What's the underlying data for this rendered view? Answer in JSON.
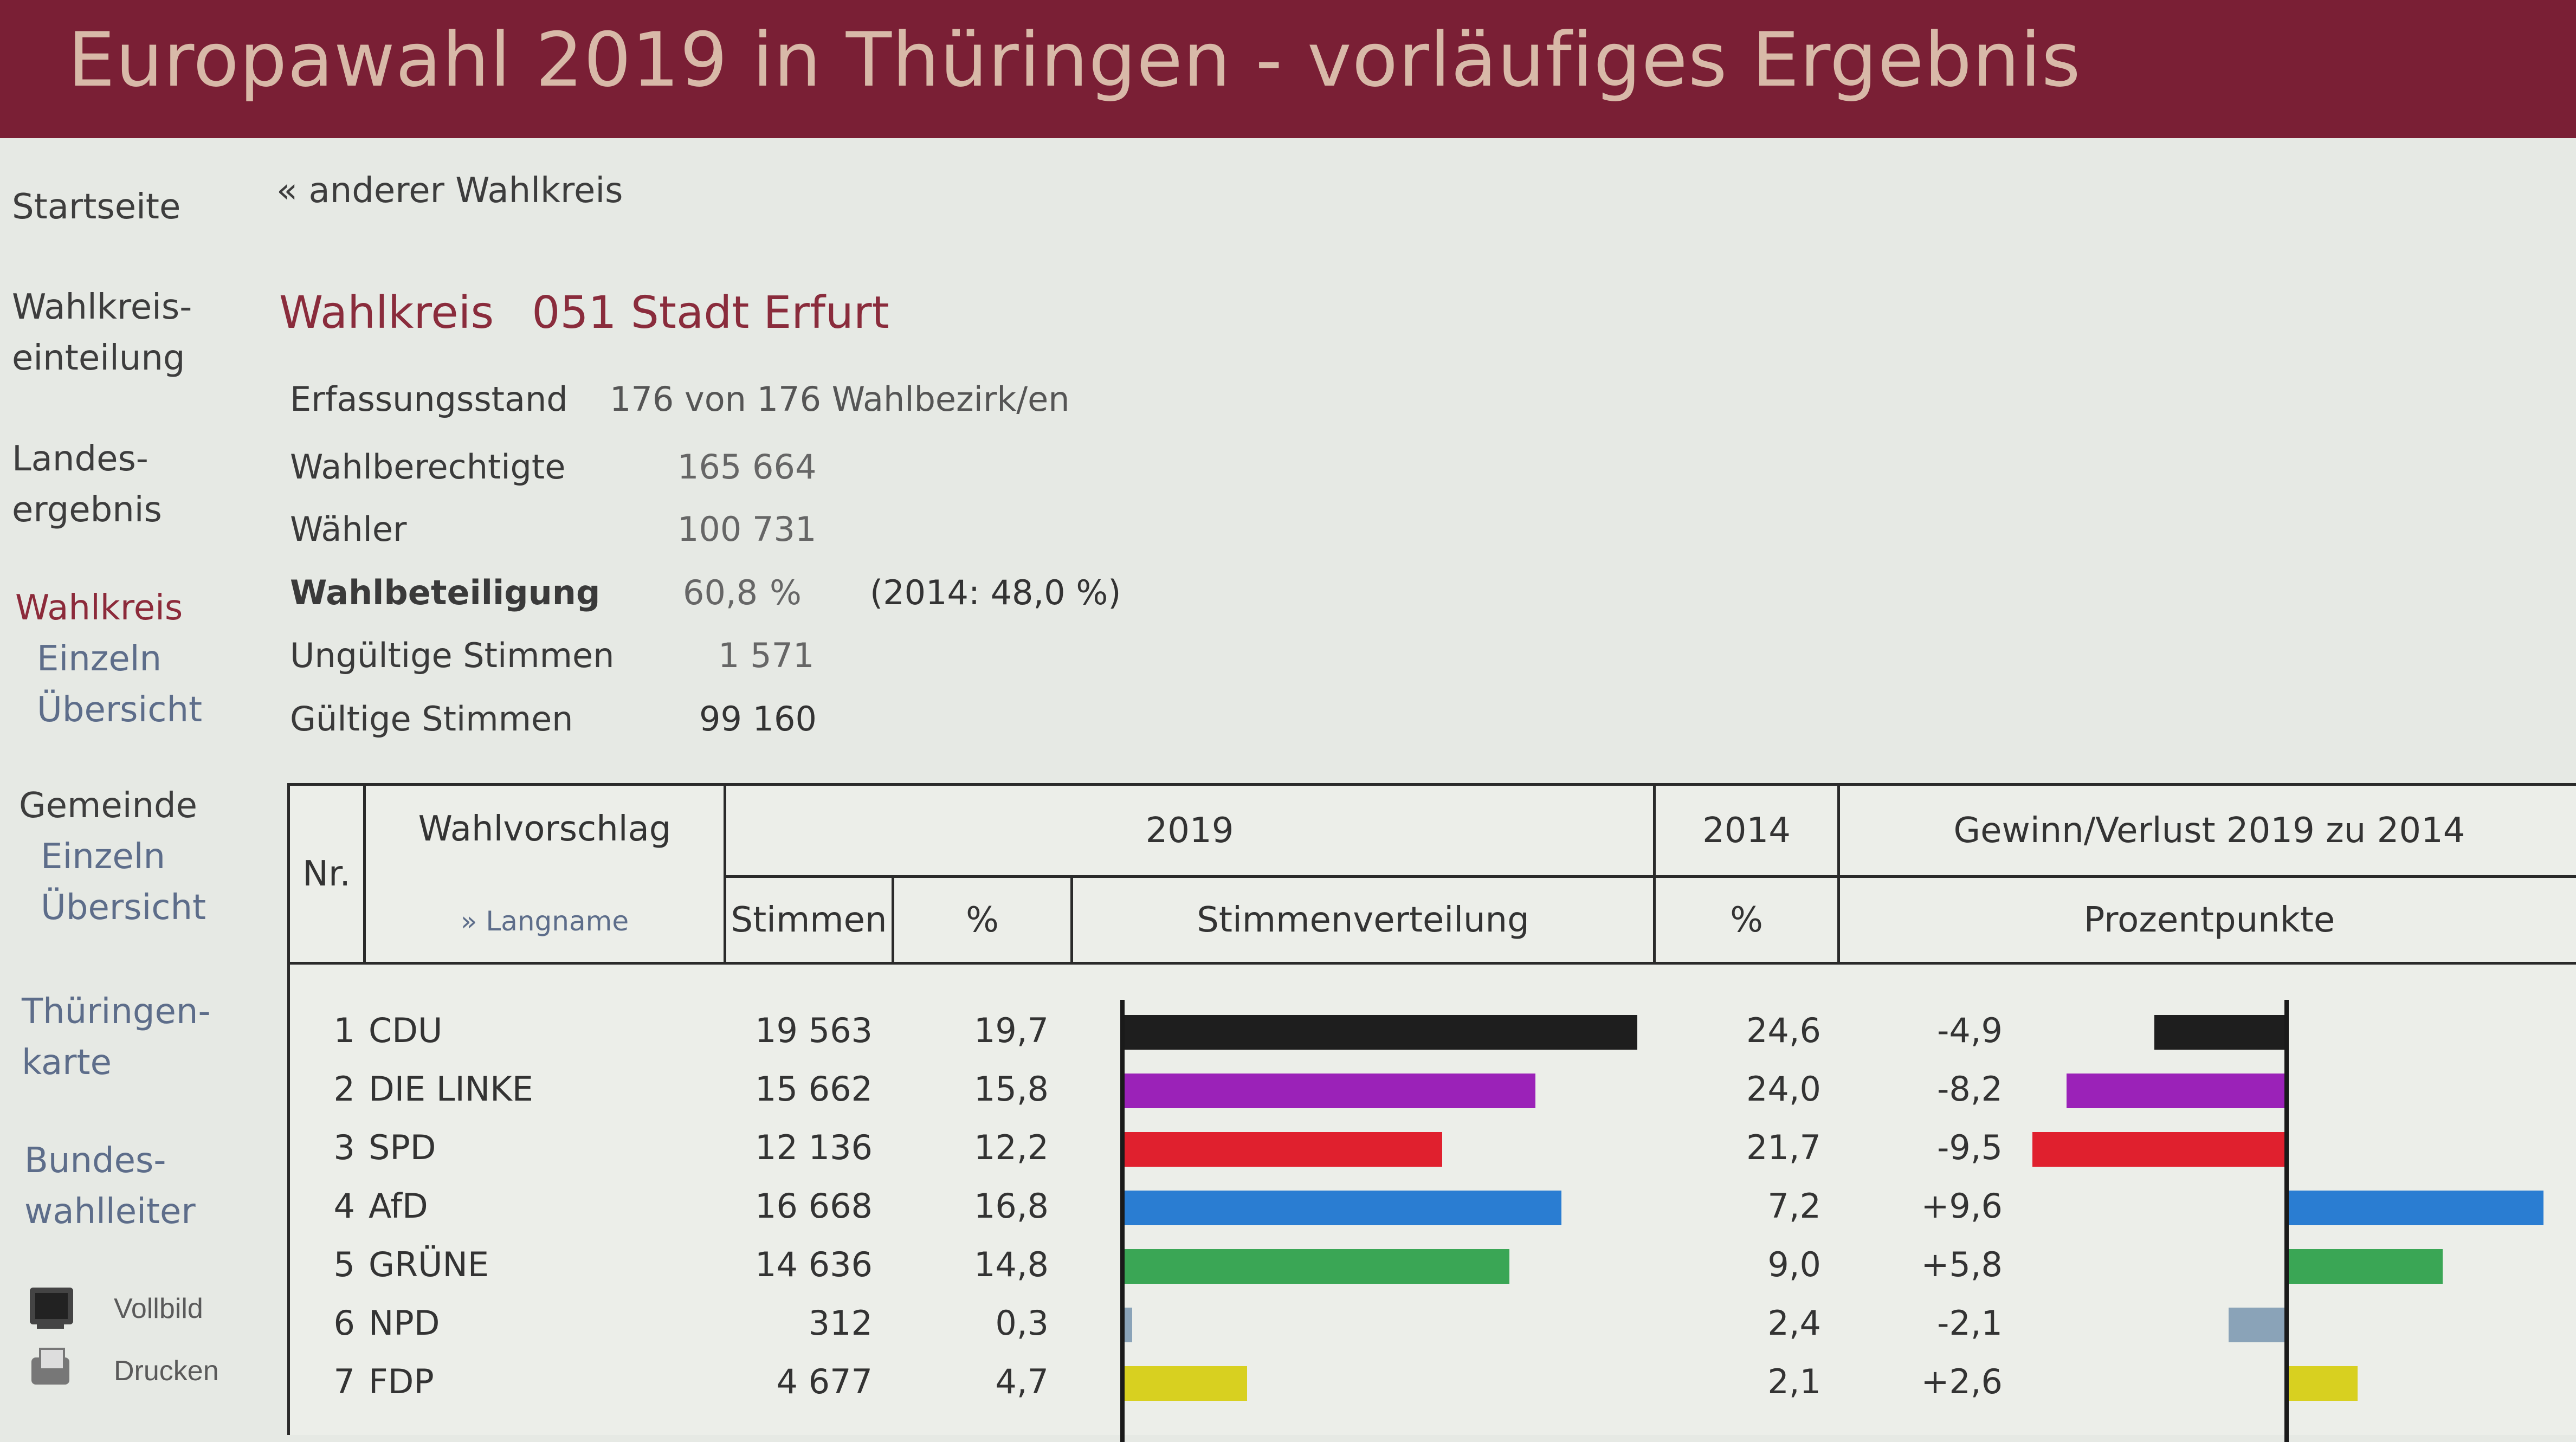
{
  "header": {
    "title": "Europawahl 2019 in Thüringen - vorläufiges Ergebnis"
  },
  "sidebar": {
    "startseite": "Startseite",
    "wahlkreiseinteilung": [
      "Wahlkreis-",
      "einteilung"
    ],
    "landesergebnis": [
      "Landes-",
      "ergebnis"
    ],
    "wahlkreis": {
      "label": "Wahlkreis",
      "einzeln": "Einzeln",
      "uebersicht": "Übersicht"
    },
    "gemeinde": {
      "label": "Gemeinde",
      "einzeln": "Einzeln",
      "uebersicht": "Übersicht"
    },
    "karte": [
      "Thüringen-",
      "karte"
    ],
    "bundeswahlleiter": [
      "Bundes-",
      "wahlleiter"
    ],
    "vollbild": "Vollbild",
    "drucken": "Drucken"
  },
  "back_link": "« anderer Wahlkreis",
  "wahlkreis": {
    "label": "Wahlkreis",
    "name": "051 Stadt Erfurt"
  },
  "stats": {
    "erfassungsstand_label": "Erfassungsstand",
    "erfassungsstand_value": "176 von 176 Wahlbezirk/en",
    "wahlberechtigte_label": "Wahlberechtigte",
    "wahlberechtigte_value": "165 664",
    "waehler_label": "Wähler",
    "waehler_value": "100 731",
    "wahlbeteiligung_label": "Wahlbeteiligung",
    "wahlbeteiligung_value": "60,8",
    "wahlbeteiligung_unit": "%",
    "wahlbeteiligung_2014": "(2014: 48,0 %)",
    "ungueltige_label": "Ungültige Stimmen",
    "ungueltige_value": "1 571",
    "gueltige_label": "Gültige Stimmen",
    "gueltige_value": "99 160"
  },
  "table": {
    "nr": "Nr.",
    "wahlvorschlag": "Wahlvorschlag",
    "langname": "» Langname",
    "year_2019": "2019",
    "year_2014": "2014",
    "gewinn": "Gewinn/Verlust 2019 zu 2014",
    "stimmen": "Stimmen",
    "pct": "%",
    "stimmenverteilung": "Stimmenverteilung",
    "pct_2014": "%",
    "prozentpunkte": "Prozentpunkte"
  },
  "rows": [
    {
      "nr": "1",
      "party": "CDU",
      "stimmen": "19 563",
      "pct": "19,7",
      "pct2014": "24,6",
      "diff": "-4,9",
      "v": 19.7,
      "d": -4.9,
      "color": "#1e1e1e"
    },
    {
      "nr": "2",
      "party": "DIE LINKE",
      "stimmen": "15 662",
      "pct": "15,8",
      "pct2014": "24,0",
      "diff": "-8,2",
      "v": 15.8,
      "d": -8.2,
      "color": "#9b22b8"
    },
    {
      "nr": "3",
      "party": "SPD",
      "stimmen": "12 136",
      "pct": "12,2",
      "pct2014": "21,7",
      "diff": "-9,5",
      "v": 12.2,
      "d": -9.5,
      "color": "#e0202e"
    },
    {
      "nr": "4",
      "party": "AfD",
      "stimmen": "16 668",
      "pct": "16,8",
      "pct2014": "7,2",
      "diff": "+9,6",
      "v": 16.8,
      "d": 9.6,
      "color": "#2a7dd2"
    },
    {
      "nr": "5",
      "party": "GRÜNE",
      "stimmen": "14 636",
      "pct": "14,8",
      "pct2014": "9,0",
      "diff": "+5,8",
      "v": 14.8,
      "d": 5.8,
      "color": "#3aa655"
    },
    {
      "nr": "6",
      "party": "NPD",
      "stimmen": "312",
      "pct": "0,3",
      "pct2014": "2,4",
      "diff": "-2,1",
      "v": 0.3,
      "d": -2.1,
      "color": "#8aa3b8"
    },
    {
      "nr": "7",
      "party": "FDP",
      "stimmen": "4 677",
      "pct": "4,7",
      "pct2014": "2,1",
      "diff": "+2,6",
      "v": 4.7,
      "d": 2.6,
      "color": "#d8d020"
    }
  ]
}
